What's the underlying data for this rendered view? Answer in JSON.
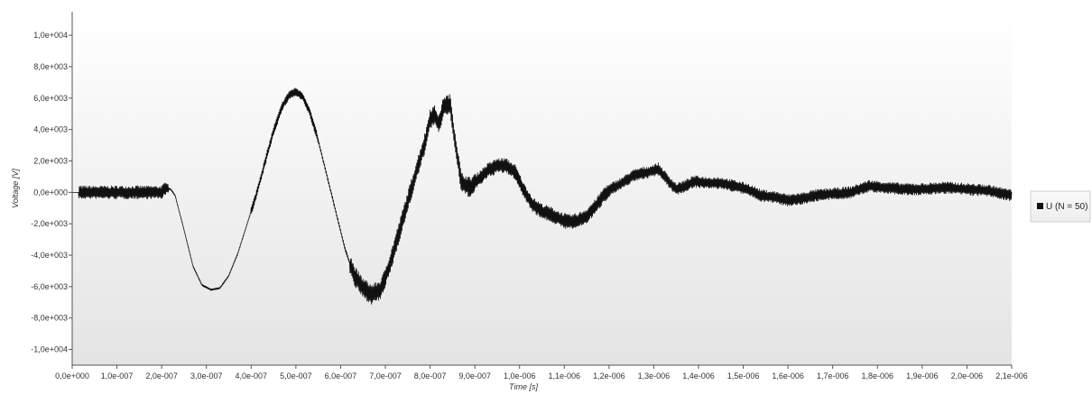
{
  "chart_data": {
    "type": "line",
    "xlabel": "Time [s]",
    "ylabel": "Voltage [V]",
    "xlim": [
      0,
      2.1e-06
    ],
    "ylim": [
      -11000,
      11500
    ],
    "x_tick_values": [
      0,
      1e-07,
      2e-07,
      3e-07,
      4e-07,
      5e-07,
      6e-07,
      7e-07,
      8e-07,
      9e-07,
      1e-06,
      1.1e-06,
      1.2e-06,
      1.3e-06,
      1.4e-06,
      1.5e-06,
      1.6e-06,
      1.7e-06,
      1.8e-06,
      1.9e-06,
      2e-06,
      2.1e-06
    ],
    "x_tick_labels": [
      "0,0e+000",
      "1,0e-007",
      "2,0e-007",
      "3,0e-007",
      "4,0e-007",
      "5,0e-007",
      "6,0e-007",
      "7,0e-007",
      "8,0e-007",
      "9,0e-007",
      "1,0e-006",
      "1,1e-006",
      "1,2e-006",
      "1,3e-006",
      "1,4e-006",
      "1,5e-006",
      "1,6e-006",
      "1,7e-006",
      "1,8e-006",
      "1,9e-006",
      "2,0e-006",
      "2,1e-006"
    ],
    "y_tick_values": [
      10000,
      8000,
      6000,
      4000,
      2000,
      0,
      -2000,
      -4000,
      -6000,
      -8000,
      -10000
    ],
    "y_tick_labels": [
      "1,0e+004",
      "8,0e+003",
      "6,0e+003",
      "4,0e+003",
      "2,0e+003",
      "0,0e+000",
      "-2,0e+003",
      "-4,0e+003",
      "-6,0e+003",
      "-8,0e+003",
      "-1,0e+004"
    ],
    "grid": false,
    "legend_position": "right",
    "line_color": "#111111",
    "series": [
      {
        "name": "U (N = 50)",
        "x": [
          0,
          2e-08,
          4e-08,
          6e-08,
          8e-08,
          1e-07,
          1.2e-07,
          1.4e-07,
          1.6e-07,
          1.8e-07,
          2e-07,
          2.1e-07,
          2.2e-07,
          2.3e-07,
          2.5e-07,
          2.7e-07,
          2.9e-07,
          3.1e-07,
          3.3e-07,
          3.5e-07,
          3.7e-07,
          3.9e-07,
          4.1e-07,
          4.3e-07,
          4.5e-07,
          4.7e-07,
          4.85e-07,
          5e-07,
          5.15e-07,
          5.3e-07,
          5.5e-07,
          5.7e-07,
          5.9e-07,
          6.1e-07,
          6.3e-07,
          6.5e-07,
          6.7e-07,
          6.9e-07,
          7.1e-07,
          7.3e-07,
          7.5e-07,
          7.7e-07,
          7.9e-07,
          8e-07,
          8.1e-07,
          8.2e-07,
          8.3e-07,
          8.45e-07,
          8.55e-07,
          8.7e-07,
          8.9e-07,
          9.1e-07,
          9.3e-07,
          9.5e-07,
          9.7e-07,
          9.9e-07,
          1.01e-06,
          1.03e-06,
          1.05e-06,
          1.07e-06,
          1.09e-06,
          1.11e-06,
          1.13e-06,
          1.15e-06,
          1.17e-06,
          1.19e-06,
          1.21e-06,
          1.23e-06,
          1.25e-06,
          1.27e-06,
          1.29e-06,
          1.31e-06,
          1.33e-06,
          1.35e-06,
          1.37e-06,
          1.39e-06,
          1.42e-06,
          1.45e-06,
          1.48e-06,
          1.51e-06,
          1.54e-06,
          1.57e-06,
          1.6e-06,
          1.63e-06,
          1.66e-06,
          1.7e-06,
          1.74e-06,
          1.78e-06,
          1.82e-06,
          1.86e-06,
          1.9e-06,
          1.95e-06,
          2e-06,
          2.05e-06,
          2.1e-06
        ],
        "y": [
          0,
          0,
          0,
          0,
          0,
          0,
          0,
          0,
          0,
          0,
          0,
          300,
          200,
          -200,
          -2400,
          -4700,
          -5900,
          -6200,
          -6100,
          -5300,
          -3900,
          -2100,
          -300,
          1800,
          3900,
          5500,
          6200,
          6400,
          6100,
          5200,
          3300,
          1000,
          -1300,
          -3600,
          -5300,
          -6100,
          -6500,
          -6200,
          -4600,
          -2600,
          -600,
          1400,
          3300,
          4700,
          4900,
          4300,
          5500,
          5600,
          3400,
          600,
          300,
          900,
          1400,
          1700,
          1700,
          1300,
          100,
          -800,
          -1200,
          -1400,
          -1700,
          -1900,
          -1800,
          -1500,
          -900,
          -100,
          300,
          600,
          1000,
          1200,
          1300,
          1500,
          800,
          200,
          400,
          700,
          600,
          600,
          400,
          200,
          -200,
          -300,
          -500,
          -400,
          -200,
          -100,
          0,
          400,
          300,
          200,
          200,
          300,
          200,
          100,
          -200
        ]
      }
    ]
  }
}
